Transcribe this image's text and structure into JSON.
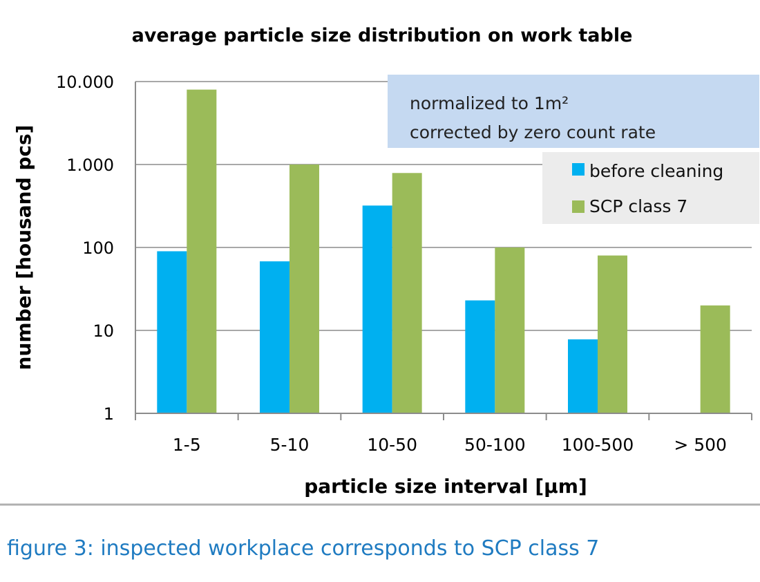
{
  "chart_data": {
    "type": "bar",
    "title": "average particle size distribution on work table",
    "xlabel": "particle size interval [µm]",
    "ylabel": "number [housand pcs]",
    "yscale": "log",
    "ylim": [
      1,
      10000
    ],
    "yticks": [
      1,
      10,
      100,
      1000,
      10000
    ],
    "ytick_labels": [
      "1",
      "10",
      "100",
      "1.000",
      "10.000"
    ],
    "grid": true,
    "categories": [
      "1-5",
      "5-10",
      "10-50",
      "50-100",
      "100-500",
      "> 500"
    ],
    "series": [
      {
        "name": "before cleaning",
        "color": "#00b0f0",
        "values": [
          90,
          68,
          320,
          23,
          7.8,
          null
        ]
      },
      {
        "name": "SCP class 7",
        "color": "#9bbb59",
        "values": [
          8000,
          1000,
          790,
          100,
          80,
          20
        ]
      }
    ],
    "legend_position": "top-right",
    "annotation": {
      "line1": "normalized to 1m²",
      "line2": "corrected by zero count rate",
      "background": "#c5d9f1"
    }
  },
  "caption": "figure 3:  inspected workplace corresponds to SCP class 7",
  "colors": {
    "caption": "#1f7bc1",
    "divider": "#b0b0b0",
    "legend_background": "#ececec"
  }
}
